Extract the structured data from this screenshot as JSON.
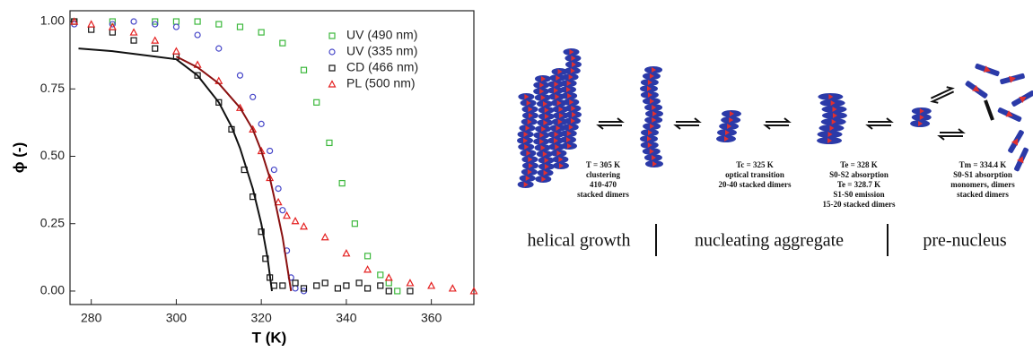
{
  "chart_data": {
    "type": "scatter",
    "xlabel": "T (K)",
    "ylabel": "ϕ (-)",
    "xlim": [
      275,
      370
    ],
    "ylim": [
      -0.05,
      1.04
    ],
    "xticks": [
      280,
      300,
      320,
      340,
      360
    ],
    "yticks": [
      {
        "value": 0,
        "label": "0.00"
      },
      {
        "value": 0.25,
        "label": "0.25"
      },
      {
        "value": 0.5,
        "label": "0.50"
      },
      {
        "value": 0.75,
        "label": "0.75"
      },
      {
        "value": 1,
        "label": "1.00"
      }
    ],
    "legend": "upper right",
    "series": [
      {
        "name": "UV (490 nm)",
        "color": "#3cb83c",
        "marker": "square",
        "x": [
          276,
          285,
          295,
          300,
          305,
          310,
          315,
          320,
          325,
          330,
          333,
          336,
          339,
          342,
          345,
          348,
          350,
          352
        ],
        "values": [
          1.0,
          1.0,
          1.0,
          1.0,
          1.0,
          0.99,
          0.98,
          0.96,
          0.92,
          0.82,
          0.7,
          0.55,
          0.4,
          0.25,
          0.13,
          0.06,
          0.03,
          0.0
        ]
      },
      {
        "name": "UV (335 nm)",
        "color": "#4646c8",
        "marker": "circle",
        "x": [
          276,
          285,
          290,
          295,
          300,
          305,
          310,
          315,
          318,
          320,
          322,
          323,
          324,
          325,
          326,
          327,
          328,
          330
        ],
        "values": [
          0.99,
          0.99,
          1.0,
          0.99,
          0.98,
          0.95,
          0.9,
          0.8,
          0.72,
          0.62,
          0.52,
          0.45,
          0.38,
          0.3,
          0.15,
          0.05,
          0.01,
          0.0
        ]
      },
      {
        "name": "CD (466 nm)",
        "color": "#111111",
        "marker": "square",
        "x": [
          276,
          280,
          285,
          290,
          295,
          300,
          305,
          310,
          313,
          316,
          318,
          320,
          321,
          322,
          323,
          325,
          328,
          330,
          333,
          335,
          338,
          340,
          343,
          345,
          348,
          350,
          355
        ],
        "values": [
          1.0,
          0.97,
          0.96,
          0.93,
          0.9,
          0.87,
          0.8,
          0.7,
          0.6,
          0.45,
          0.35,
          0.22,
          0.12,
          0.05,
          0.02,
          0.02,
          0.03,
          0.01,
          0.02,
          0.03,
          0.01,
          0.02,
          0.03,
          0.01,
          0.02,
          0.0,
          0.0
        ]
      },
      {
        "name": "PL (500 nm)",
        "color": "#e42020",
        "marker": "triangle",
        "x": [
          276,
          280,
          285,
          290,
          295,
          300,
          305,
          310,
          315,
          318,
          320,
          322,
          324,
          326,
          328,
          330,
          335,
          340,
          345,
          350,
          355,
          360,
          365,
          370
        ],
        "values": [
          1.0,
          0.99,
          0.98,
          0.96,
          0.93,
          0.89,
          0.84,
          0.78,
          0.68,
          0.6,
          0.52,
          0.42,
          0.33,
          0.28,
          0.26,
          0.24,
          0.2,
          0.14,
          0.08,
          0.05,
          0.03,
          0.02,
          0.01,
          0.0
        ]
      }
    ],
    "fits": [
      {
        "color": "#111111",
        "x": [
          277,
          285,
          290,
          295,
          300,
          305,
          310,
          313,
          315,
          318,
          320,
          321.5,
          322.5
        ],
        "values": [
          0.9,
          0.89,
          0.88,
          0.87,
          0.86,
          0.8,
          0.7,
          0.61,
          0.53,
          0.38,
          0.25,
          0.12,
          0.0
        ]
      },
      {
        "color": "#8a1010",
        "x": [
          300,
          305,
          310,
          315,
          318,
          320,
          322,
          323,
          325,
          326.5,
          327
        ],
        "values": [
          0.87,
          0.83,
          0.77,
          0.68,
          0.6,
          0.52,
          0.42,
          0.35,
          0.2,
          0.05,
          0.0
        ]
      }
    ]
  },
  "diagram": {
    "steps": [
      {
        "lines": [
          "T = 305 K",
          "clustering",
          "410-470",
          "stacked dimers"
        ]
      },
      {
        "lines": [
          "Tc = 325 K",
          "optical transition",
          "20-40 stacked dimers"
        ]
      },
      {
        "lines": [
          "Te = 328 K",
          "S0-S2 absorption",
          "Te = 328.7 K",
          "S1-S0 emission",
          "15-20 stacked dimers"
        ]
      },
      {
        "lines": [
          "Tm = 334.4 K",
          "S0-S1 absorption",
          "monomers, dimers",
          "stacked dimers"
        ]
      }
    ],
    "phases": [
      "helical growth",
      "nucleating aggregate",
      "pre-nucleus"
    ]
  }
}
